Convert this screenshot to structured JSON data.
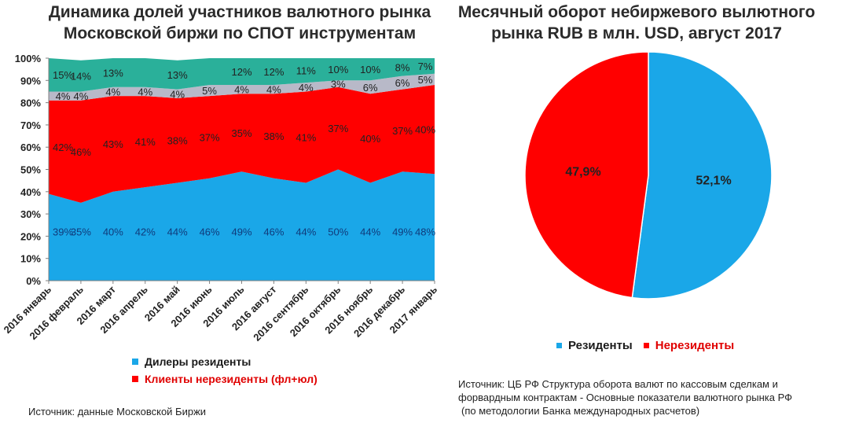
{
  "left_chart": {
    "title_line1": "Динамика долей участников валютного рынка",
    "title_line2": "Московской биржи по СПОТ инструментам",
    "legend": [
      {
        "label": "Дилеры резиденты",
        "color": "#1aa7e8",
        "text_color": "#1a1a1a"
      },
      {
        "label": "Клиенты нерезиденты (фл+юл)",
        "color": "#ff0000",
        "text_color": "#e00000"
      }
    ],
    "source": "Источник: данные Московской Биржи"
  },
  "right_chart": {
    "title_line1": "Месячный оборот небиржевого вылютного",
    "title_line2": "рынка RUB в млн. USD, август 2017",
    "legend": [
      {
        "label": "Резиденты",
        "color": "#1aa7e8",
        "text_color": "#1a1a1a"
      },
      {
        "label": "Нерезиденты",
        "color": "#ff0000",
        "text_color": "#e00000"
      }
    ],
    "source_line1": "Источник: ЦБ РФ Структура оборота валют по кассовым сделкам и",
    "source_line2": "форвардным контрактам - Основные показатели валютного рынка РФ",
    "source_line3": "(по методологии Банка международных расчетов)"
  },
  "chart_data": [
    {
      "type": "area",
      "stacked": true,
      "categories": [
        "2016 январь",
        "2016 февраль",
        "2016 март",
        "2016 апрель",
        "2016 май",
        "2016 июнь",
        "2016 июль",
        "2016 август",
        "2016 сентябрь",
        "2016 октябрь",
        "2016 ноябрь",
        "2016 декабрь",
        "2017 январь"
      ],
      "ylim": [
        0,
        100
      ],
      "yticks": [
        "0%",
        "10%",
        "20%",
        "30%",
        "40%",
        "50%",
        "60%",
        "70%",
        "80%",
        "90%",
        "100%"
      ],
      "series": [
        {
          "name": "Дилеры резиденты",
          "color": "#1aa7e8",
          "values": [
            39,
            35,
            40,
            42,
            44,
            46,
            49,
            46,
            44,
            50,
            44,
            49,
            48
          ]
        },
        {
          "name": "Клиенты нерезиденты (фл+юл)",
          "color": "#ff0000",
          "values": [
            42,
            46,
            43,
            41,
            38,
            37,
            35,
            38,
            41,
            37,
            40,
            37,
            40
          ]
        },
        {
          "color": "#b8b9c8",
          "values": [
            4,
            4,
            4,
            4,
            4,
            5,
            4,
            4,
            4,
            3,
            6,
            6,
            5
          ]
        },
        {
          "color": "#2ab09a",
          "values": [
            15,
            14,
            13,
            13,
            13,
            12,
            12,
            12,
            11,
            10,
            10,
            8,
            7
          ]
        }
      ],
      "labels": [
        [
          "39%",
          "35%",
          "40%",
          "42%",
          "44%",
          "46%",
          "49%",
          "46%",
          "44%",
          "50%",
          "44%",
          "49%",
          "48%"
        ],
        [
          "42%",
          "46%",
          "43%",
          "41%",
          "38%",
          "37%",
          "35%",
          "38%",
          "41%",
          "37%",
          "40%",
          "37%",
          "40%"
        ],
        [
          "4%",
          "4%",
          "4%",
          "4%",
          "4%",
          "5%",
          "4%",
          "4%",
          "4%",
          "3%",
          "6%",
          "6%",
          "5%"
        ],
        [
          "15%",
          "14%",
          "13%",
          "",
          "13%",
          "",
          "12%",
          "12%",
          "11%",
          "10%",
          "10%",
          "8%",
          "7%"
        ]
      ]
    },
    {
      "type": "pie",
      "slices": [
        {
          "name": "Резиденты",
          "value": 52.1,
          "label": "52,1%",
          "color": "#1aa7e8"
        },
        {
          "name": "Нерезиденты",
          "value": 47.9,
          "label": "47,9%",
          "color": "#ff0000"
        }
      ]
    }
  ]
}
